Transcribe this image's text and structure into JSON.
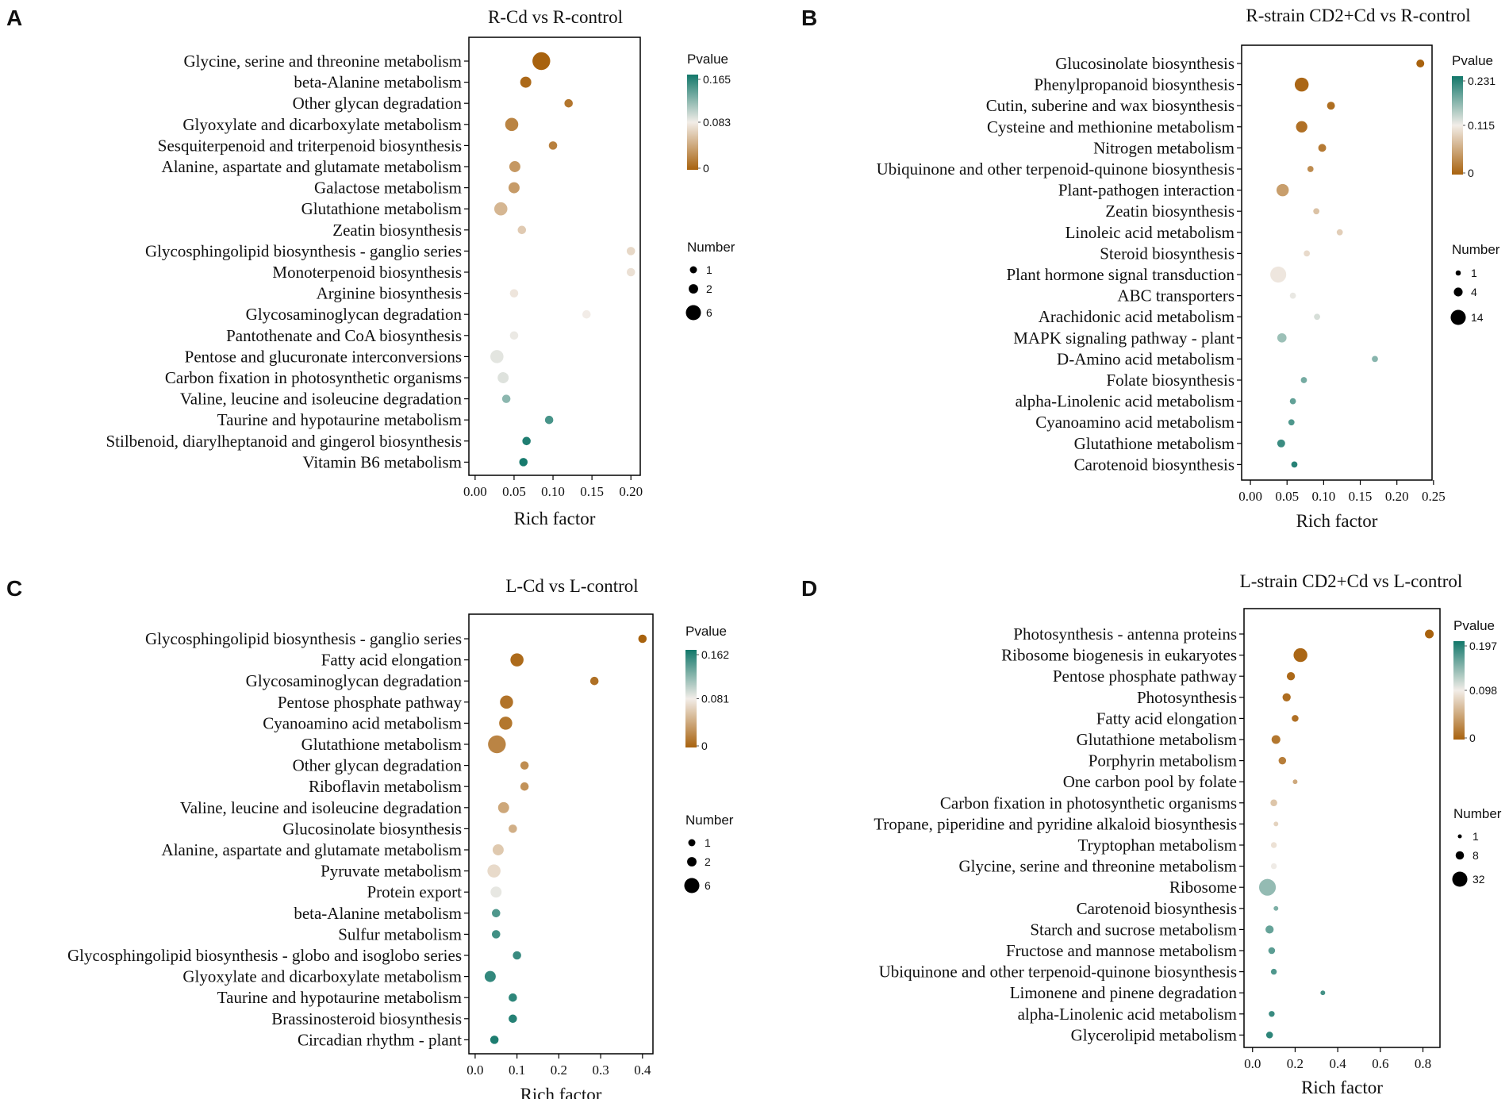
{
  "colors": {
    "low": "#A8620E",
    "mid": "#F2EDE8",
    "high": "#12776A",
    "frame": "#000000"
  },
  "legend_titles": {
    "pvalue": "Pvalue",
    "number": "Number"
  },
  "chart_data": [
    {
      "id": "A",
      "type": "scatter",
      "panel_label": "A",
      "title": "R-Cd vs R-control",
      "xlabel": "Rich factor",
      "xlim": [
        -0.008,
        0.212
      ],
      "xticks": [
        0.0,
        0.05,
        0.1,
        0.15,
        0.2
      ],
      "xtick_labels": [
        "0.00",
        "0.05",
        "0.10",
        "0.15",
        "0.20"
      ],
      "pvalue_range": [
        0,
        0.165
      ],
      "pvalue_labels": [
        "0.165",
        "0.083",
        "0"
      ],
      "number_range": [
        1,
        6
      ],
      "number_labels": [
        "1",
        "2",
        "6"
      ],
      "number_values": [
        1,
        2,
        6
      ],
      "categories": [
        "Glycine, serine and threonine metabolism",
        "beta-Alanine metabolism",
        "Other glycan degradation",
        "Glyoxylate and dicarboxylate metabolism",
        "Sesquiterpenoid and triterpenoid biosynthesis",
        "Alanine, aspartate and glutamate metabolism",
        "Galactose metabolism",
        "Glutathione metabolism",
        "Zeatin biosynthesis",
        "Glycosphingolipid biosynthesis - ganglio series",
        "Monoterpenoid biosynthesis",
        "Arginine biosynthesis",
        "Glycosaminoglycan degradation",
        "Pantothenate and CoA biosynthesis",
        "Pentose and glucuronate interconversions",
        "Carbon fixation in photosynthetic organisms",
        "Valine, leucine and isoleucine degradation",
        "Taurine and hypotaurine metabolism",
        "Stilbenoid, diarylheptanoid and gingerol biosynthesis",
        "Vitamin B6 metabolism"
      ],
      "x": [
        0.085,
        0.065,
        0.12,
        0.047,
        0.1,
        0.051,
        0.05,
        0.033,
        0.06,
        0.2,
        0.2,
        0.05,
        0.143,
        0.05,
        0.028,
        0.036,
        0.04,
        0.095,
        0.066,
        0.062
      ],
      "count": [
        6,
        2,
        1,
        3,
        1,
        2,
        2,
        3,
        1,
        1,
        1,
        1,
        1,
        1,
        3,
        2,
        1,
        1,
        1,
        1
      ],
      "pvalue": [
        0.0,
        0.004,
        0.012,
        0.02,
        0.018,
        0.032,
        0.034,
        0.05,
        0.062,
        0.07,
        0.075,
        0.078,
        0.082,
        0.085,
        0.088,
        0.09,
        0.12,
        0.145,
        0.16,
        0.163
      ]
    },
    {
      "id": "B",
      "type": "scatter",
      "panel_label": "B",
      "title": "R-strain CD2+Cd vs R-control",
      "xlabel": "Rich factor",
      "xlim": [
        -0.012,
        0.248
      ],
      "xticks": [
        0.0,
        0.05,
        0.1,
        0.15,
        0.2,
        0.25
      ],
      "xtick_labels": [
        "0.00",
        "0.05",
        "0.10",
        "0.15",
        "0.20",
        "0.25"
      ],
      "pvalue_range": [
        0,
        0.231
      ],
      "pvalue_labels": [
        "0.231",
        "0.115",
        "0"
      ],
      "number_range": [
        1,
        14
      ],
      "number_labels": [
        "1",
        "4",
        "14"
      ],
      "number_values": [
        1,
        4,
        14
      ],
      "categories": [
        "Glucosinolate biosynthesis",
        "Phenylpropanoid biosynthesis",
        "Cutin, suberine and wax biosynthesis",
        "Cysteine and methionine metabolism",
        "Nitrogen metabolism",
        "Ubiquinone and other terpenoid-quinone biosynthesis",
        "Plant-pathogen interaction",
        "Zeatin biosynthesis",
        "Linoleic acid metabolism",
        "Steroid biosynthesis",
        "Plant hormone signal transduction",
        "ABC transporters",
        "Arachidonic acid metabolism",
        "MAPK signaling pathway - plant",
        "D-Amino acid metabolism",
        "Folate biosynthesis",
        "alpha-Linolenic acid metabolism",
        "Cyanoamino acid metabolism",
        "Glutathione metabolism",
        "Carotenoid biosynthesis"
      ],
      "x": [
        0.232,
        0.07,
        0.11,
        0.07,
        0.098,
        0.082,
        0.044,
        0.09,
        0.122,
        0.077,
        0.038,
        0.058,
        0.091,
        0.043,
        0.17,
        0.073,
        0.058,
        0.056,
        0.042,
        0.06
      ],
      "count": [
        2,
        8,
        2,
        5,
        2,
        1,
        6,
        1,
        1,
        1,
        11,
        1,
        1,
        3,
        1,
        1,
        1,
        1,
        2,
        1
      ],
      "pvalue": [
        0.0,
        0.004,
        0.01,
        0.012,
        0.02,
        0.035,
        0.05,
        0.08,
        0.09,
        0.1,
        0.11,
        0.12,
        0.13,
        0.16,
        0.17,
        0.18,
        0.19,
        0.2,
        0.21,
        0.22
      ]
    },
    {
      "id": "C",
      "type": "scatter",
      "panel_label": "C",
      "title": "L-Cd vs L-control",
      "xlabel": "Rich factor",
      "xlim": [
        -0.015,
        0.425
      ],
      "xticks": [
        0.0,
        0.1,
        0.2,
        0.3,
        0.4
      ],
      "xtick_labels": [
        "0.0",
        "0.1",
        "0.2",
        "0.3",
        "0.4"
      ],
      "pvalue_range": [
        0,
        0.162
      ],
      "pvalue_labels": [
        "0.162",
        "0.081",
        "0"
      ],
      "number_range": [
        1,
        6
      ],
      "number_labels": [
        "1",
        "2",
        "6"
      ],
      "number_values": [
        1,
        2,
        6
      ],
      "categories": [
        "Glycosphingolipid biosynthesis - ganglio series",
        "Fatty acid elongation",
        "Glycosaminoglycan degradation",
        "Pentose phosphate pathway",
        "Cyanoamino acid metabolism",
        "Glutathione metabolism",
        "Other glycan degradation",
        "Riboflavin metabolism",
        "Valine, leucine and isoleucine degradation",
        "Glucosinolate biosynthesis",
        "Alanine, aspartate and glutamate metabolism",
        "Pyruvate metabolism",
        "Protein export",
        "beta-Alanine metabolism",
        "Sulfur metabolism",
        "Glycosphingolipid biosynthesis - globo and isoglobo series",
        "Glyoxylate and dicarboxylate metabolism",
        "Taurine and hypotaurine metabolism",
        "Brassinosteroid biosynthesis",
        "Circadian rhythm - plant"
      ],
      "x": [
        0.4,
        0.1,
        0.285,
        0.075,
        0.073,
        0.052,
        0.118,
        0.118,
        0.068,
        0.09,
        0.055,
        0.045,
        0.05,
        0.05,
        0.05,
        0.1,
        0.036,
        0.09,
        0.09,
        0.046
      ],
      "count": [
        1,
        3,
        1,
        3,
        3,
        6,
        1,
        1,
        2,
        1,
        2,
        3,
        2,
        1,
        1,
        1,
        2,
        1,
        1,
        1
      ],
      "pvalue": [
        0.0,
        0.005,
        0.008,
        0.01,
        0.012,
        0.02,
        0.025,
        0.028,
        0.04,
        0.045,
        0.06,
        0.07,
        0.085,
        0.14,
        0.145,
        0.148,
        0.15,
        0.152,
        0.155,
        0.158
      ]
    },
    {
      "id": "D",
      "type": "scatter",
      "panel_label": "D",
      "title": "L-strain CD2+Cd vs L-control",
      "xlabel": "Rich factor",
      "xlim": [
        -0.04,
        0.88
      ],
      "xticks": [
        0.0,
        0.2,
        0.4,
        0.6,
        0.8
      ],
      "xtick_labels": [
        "0.0",
        "0.2",
        "0.4",
        "0.6",
        "0.8"
      ],
      "pvalue_range": [
        0,
        0.197
      ],
      "pvalue_labels": [
        "0.197",
        "0.098",
        "0"
      ],
      "number_range": [
        1,
        32
      ],
      "number_labels": [
        "1",
        "8",
        "32"
      ],
      "number_values": [
        1,
        8,
        32
      ],
      "categories": [
        "Photosynthesis - antenna proteins",
        "Ribosome biogenesis in eukaryotes",
        "Pentose phosphate pathway",
        "Photosynthesis",
        "Fatty acid elongation",
        "Glutathione metabolism",
        "Porphyrin metabolism",
        "One carbon pool by folate",
        "Carbon fixation in photosynthetic organisms",
        "Tropane, piperidine and pyridine alkaloid biosynthesis",
        "Tryptophan metabolism",
        "Glycine, serine and threonine metabolism",
        "Ribosome",
        "Carotenoid biosynthesis",
        "Starch and sucrose metabolism",
        "Fructose and mannose metabolism",
        "Ubiquinone and other terpenoid-quinone biosynthesis",
        "Limonene and pinene degradation",
        "alpha-Linolenic acid metabolism",
        "Glycerolipid metabolism"
      ],
      "x": [
        0.83,
        0.225,
        0.18,
        0.16,
        0.2,
        0.11,
        0.14,
        0.2,
        0.1,
        0.11,
        0.1,
        0.1,
        0.07,
        0.11,
        0.08,
        0.09,
        0.1,
        0.33,
        0.09,
        0.08
      ],
      "count": [
        6,
        18,
        5,
        5,
        3,
        6,
        4,
        1,
        3,
        1,
        2,
        2,
        28,
        1,
        5,
        3,
        2,
        1,
        2,
        3
      ],
      "pvalue": [
        0.0,
        0.003,
        0.005,
        0.008,
        0.01,
        0.015,
        0.02,
        0.05,
        0.07,
        0.08,
        0.09,
        0.1,
        0.14,
        0.15,
        0.16,
        0.165,
        0.17,
        0.175,
        0.18,
        0.185
      ]
    }
  ]
}
